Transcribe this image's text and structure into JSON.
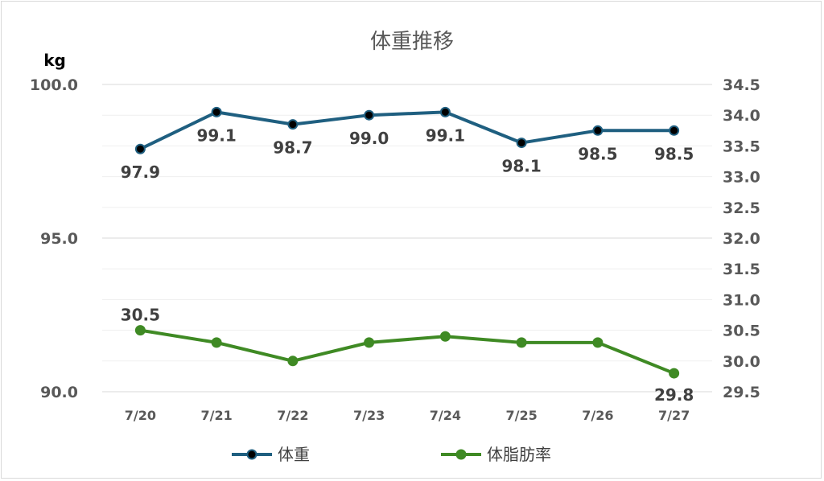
{
  "chart_data": {
    "type": "line",
    "title": "体重推移",
    "y_left_unit": "kg",
    "categories": [
      "7/20",
      "7/21",
      "7/22",
      "7/23",
      "7/24",
      "7/25",
      "7/26",
      "7/27"
    ],
    "y_left": {
      "ylim": [
        90.0,
        100.0
      ],
      "ticks": [
        "90.0",
        "95.0",
        "100.0"
      ],
      "minor_step": 1.0
    },
    "y_right": {
      "ylim": [
        29.5,
        34.5
      ],
      "ticks": [
        "29.5",
        "30.0",
        "30.5",
        "31.0",
        "31.5",
        "32.0",
        "32.5",
        "33.0",
        "33.5",
        "34.0",
        "34.5"
      ]
    },
    "series": [
      {
        "name": "体重",
        "axis": "left",
        "color": "#1f5f80",
        "marker_fill": "#000000",
        "values": [
          97.9,
          99.1,
          98.7,
          99.0,
          99.1,
          98.1,
          98.5,
          98.5
        ],
        "labels": [
          "97.9",
          "99.1",
          "98.7",
          "99.0",
          "99.1",
          "98.1",
          "98.5",
          "98.5"
        ],
        "label_position": "below"
      },
      {
        "name": "体脂肪率",
        "axis": "right",
        "color": "#3f8a24",
        "marker_fill": "#3f8a24",
        "values": [
          30.5,
          30.3,
          30.0,
          30.3,
          30.4,
          30.3,
          30.3,
          29.8
        ],
        "labels": [
          "30.5",
          "",
          "",
          "",
          "",
          "",
          "",
          "29.8"
        ],
        "label_position": "mixed"
      }
    ],
    "grid": true,
    "legend_position": "bottom"
  }
}
